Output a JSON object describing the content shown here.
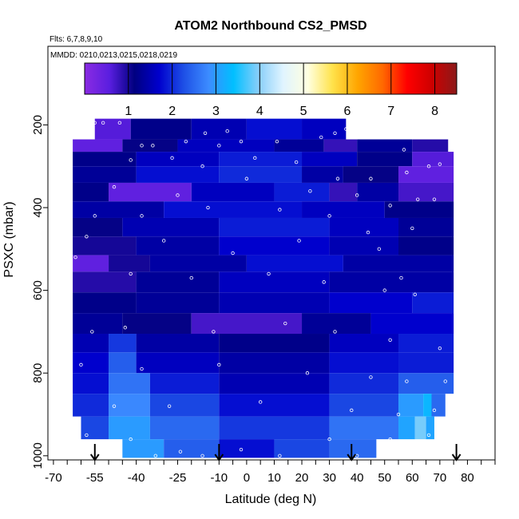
{
  "chart_data": {
    "type": "heatmap",
    "title": "ATOM2 Northbound CS2_PMSD",
    "subtitle_flights": "Flts: 6,7,8,9,10",
    "subtitle_dates": "MMDD: 0210,0213,0215,0218,0219",
    "xlabel": "Latitude (deg N)",
    "ylabel": "PSXC (mbar)",
    "xlim": [
      -72,
      90
    ],
    "ylim": [
      1010,
      10
    ],
    "x_ticks": [
      "-70",
      "-55",
      "-40",
      "-25",
      "-10",
      "0",
      "10",
      "20",
      "30",
      "40",
      "50",
      "60",
      "70",
      "80"
    ],
    "x_tick_values": [
      -70,
      -55,
      -40,
      -25,
      -10,
      0,
      10,
      20,
      30,
      40,
      50,
      60,
      70,
      80
    ],
    "y_ticks": [
      "200",
      "400",
      "600",
      "800",
      "1000"
    ],
    "y_tick_values": [
      200,
      400,
      600,
      800,
      1000
    ],
    "colorbar": {
      "range": [
        0,
        8.5
      ],
      "tick_labels": [
        "1",
        "2",
        "3",
        "4",
        "5",
        "6",
        "7",
        "8"
      ],
      "tick_values": [
        1,
        2,
        3,
        4,
        5,
        6,
        7,
        8
      ],
      "colors": [
        "#8a2be2",
        "#5a1ee0",
        "#000080",
        "#0000cd",
        "#1e50e6",
        "#3c8cff",
        "#00bfff",
        "#87cefa",
        "#e0f4ff",
        "#ffffe0",
        "#ffe24a",
        "#ffa500",
        "#ff6a00",
        "#ff0000",
        "#cd0000",
        "#8b1a1a"
      ]
    },
    "bands": [
      {
        "p_top": 185,
        "p_bot": 235,
        "segments": [
          {
            "lat": [
              -55,
              -42
            ],
            "v": 0.6
          },
          {
            "lat": [
              -42,
              -20
            ],
            "v": 1.2
          },
          {
            "lat": [
              -20,
              0
            ],
            "v": 1.5
          },
          {
            "lat": [
              0,
              20
            ],
            "v": 1.8
          },
          {
            "lat": [
              20,
              36
            ],
            "v": 1.6
          }
        ]
      },
      {
        "p_top": 235,
        "p_bot": 265,
        "segments": [
          {
            "lat": [
              -63,
              -45
            ],
            "v": 0.5
          },
          {
            "lat": [
              -45,
              -25
            ],
            "v": 1.1
          },
          {
            "lat": [
              -25,
              10
            ],
            "v": 1.6
          },
          {
            "lat": [
              10,
              28
            ],
            "v": 1.3
          },
          {
            "lat": [
              28,
              40
            ],
            "v": 0.8
          },
          {
            "lat": [
              40,
              60
            ],
            "v": 1.3
          },
          {
            "lat": [
              60,
              73
            ],
            "v": 0.9
          }
        ]
      },
      {
        "p_top": 265,
        "p_bot": 300,
        "segments": [
          {
            "lat": [
              -63,
              -40
            ],
            "v": 1.2
          },
          {
            "lat": [
              -40,
              -10
            ],
            "v": 1.6
          },
          {
            "lat": [
              -10,
              20
            ],
            "v": 1.9
          },
          {
            "lat": [
              20,
              40
            ],
            "v": 1.6
          },
          {
            "lat": [
              40,
              60
            ],
            "v": 1.2
          },
          {
            "lat": [
              60,
              75
            ],
            "v": 0.6
          }
        ]
      },
      {
        "p_top": 300,
        "p_bot": 340,
        "segments": [
          {
            "lat": [
              -63,
              -40
            ],
            "v": 1.3
          },
          {
            "lat": [
              -40,
              -10
            ],
            "v": 1.8
          },
          {
            "lat": [
              -10,
              20
            ],
            "v": 2.0
          },
          {
            "lat": [
              20,
              35
            ],
            "v": 1.4
          },
          {
            "lat": [
              35,
              55
            ],
            "v": 1.1
          },
          {
            "lat": [
              55,
              75
            ],
            "v": 0.5
          }
        ]
      },
      {
        "p_top": 340,
        "p_bot": 385,
        "segments": [
          {
            "lat": [
              -63,
              -50
            ],
            "v": 1.2
          },
          {
            "lat": [
              -50,
              -20
            ],
            "v": 0.5
          },
          {
            "lat": [
              -20,
              10
            ],
            "v": 1.6
          },
          {
            "lat": [
              10,
              30
            ],
            "v": 1.9
          },
          {
            "lat": [
              30,
              40
            ],
            "v": 0.8
          },
          {
            "lat": [
              40,
              55
            ],
            "v": 1.4
          },
          {
            "lat": [
              55,
              75
            ],
            "v": 0.7
          }
        ]
      },
      {
        "p_top": 385,
        "p_bot": 425,
        "segments": [
          {
            "lat": [
              -63,
              -30
            ],
            "v": 1.4
          },
          {
            "lat": [
              -30,
              20
            ],
            "v": 1.8
          },
          {
            "lat": [
              20,
              50
            ],
            "v": 1.6
          },
          {
            "lat": [
              50,
              75
            ],
            "v": 1.2
          }
        ]
      },
      {
        "p_top": 425,
        "p_bot": 470,
        "segments": [
          {
            "lat": [
              -63,
              -45
            ],
            "v": 1.1
          },
          {
            "lat": [
              -45,
              -10
            ],
            "v": 1.5
          },
          {
            "lat": [
              -10,
              30
            ],
            "v": 1.9
          },
          {
            "lat": [
              30,
              55
            ],
            "v": 1.6
          },
          {
            "lat": [
              55,
              75
            ],
            "v": 1.3
          }
        ]
      },
      {
        "p_top": 470,
        "p_bot": 515,
        "segments": [
          {
            "lat": [
              -63,
              -40
            ],
            "v": 1.0
          },
          {
            "lat": [
              -40,
              -10
            ],
            "v": 1.4
          },
          {
            "lat": [
              -10,
              30
            ],
            "v": 1.7
          },
          {
            "lat": [
              30,
              55
            ],
            "v": 1.5
          },
          {
            "lat": [
              55,
              75
            ],
            "v": 1.2
          }
        ]
      },
      {
        "p_top": 515,
        "p_bot": 555,
        "segments": [
          {
            "lat": [
              -63,
              -50
            ],
            "v": 0.5
          },
          {
            "lat": [
              -50,
              -35
            ],
            "v": 1.0
          },
          {
            "lat": [
              -35,
              0
            ],
            "v": 1.4
          },
          {
            "lat": [
              0,
              35
            ],
            "v": 1.8
          },
          {
            "lat": [
              35,
              75
            ],
            "v": 1.4
          }
        ]
      },
      {
        "p_top": 555,
        "p_bot": 605,
        "segments": [
          {
            "lat": [
              -63,
              -40
            ],
            "v": 0.9
          },
          {
            "lat": [
              -40,
              -10
            ],
            "v": 1.3
          },
          {
            "lat": [
              -10,
              30
            ],
            "v": 1.6
          },
          {
            "lat": [
              30,
              75
            ],
            "v": 1.4
          }
        ]
      },
      {
        "p_top": 605,
        "p_bot": 655,
        "segments": [
          {
            "lat": [
              -63,
              -40
            ],
            "v": 1.2
          },
          {
            "lat": [
              -40,
              -10
            ],
            "v": 1.3
          },
          {
            "lat": [
              -10,
              30
            ],
            "v": 1.5
          },
          {
            "lat": [
              30,
              60
            ],
            "v": 1.7
          },
          {
            "lat": [
              60,
              75
            ],
            "v": 1.9
          }
        ]
      },
      {
        "p_top": 655,
        "p_bot": 705,
        "segments": [
          {
            "lat": [
              -63,
              -45
            ],
            "v": 1.3
          },
          {
            "lat": [
              -45,
              -20
            ],
            "v": 1.1
          },
          {
            "lat": [
              -20,
              20
            ],
            "v": 0.7
          },
          {
            "lat": [
              20,
              45
            ],
            "v": 1.3
          },
          {
            "lat": [
              45,
              75
            ],
            "v": 1.7
          }
        ]
      },
      {
        "p_top": 705,
        "p_bot": 750,
        "segments": [
          {
            "lat": [
              -63,
              -50
            ],
            "v": 1.5
          },
          {
            "lat": [
              -50,
              -40
            ],
            "v": 2.1
          },
          {
            "lat": [
              -40,
              -10
            ],
            "v": 1.4
          },
          {
            "lat": [
              -10,
              30
            ],
            "v": 1.2
          },
          {
            "lat": [
              30,
              55
            ],
            "v": 1.6
          },
          {
            "lat": [
              55,
              75
            ],
            "v": 1.9
          }
        ]
      },
      {
        "p_top": 750,
        "p_bot": 800,
        "segments": [
          {
            "lat": [
              -63,
              -50
            ],
            "v": 1.7
          },
          {
            "lat": [
              -50,
              -40
            ],
            "v": 2.4
          },
          {
            "lat": [
              -40,
              -10
            ],
            "v": 1.6
          },
          {
            "lat": [
              -10,
              30
            ],
            "v": 1.4
          },
          {
            "lat": [
              30,
              55
            ],
            "v": 1.8
          },
          {
            "lat": [
              55,
              75
            ],
            "v": 1.9
          }
        ]
      },
      {
        "p_top": 800,
        "p_bot": 850,
        "segments": [
          {
            "lat": [
              -63,
              -50
            ],
            "v": 1.8
          },
          {
            "lat": [
              -50,
              -35
            ],
            "v": 2.6
          },
          {
            "lat": [
              -35,
              -10
            ],
            "v": 1.9
          },
          {
            "lat": [
              -10,
              30
            ],
            "v": 1.5
          },
          {
            "lat": [
              30,
              55
            ],
            "v": 2.0
          },
          {
            "lat": [
              55,
              75
            ],
            "v": 2.4
          }
        ]
      },
      {
        "p_top": 850,
        "p_bot": 905,
        "segments": [
          {
            "lat": [
              -63,
              -50
            ],
            "v": 2.0
          },
          {
            "lat": [
              -50,
              -35
            ],
            "v": 2.8
          },
          {
            "lat": [
              -35,
              -10
            ],
            "v": 2.2
          },
          {
            "lat": [
              -10,
              30
            ],
            "v": 1.8
          },
          {
            "lat": [
              30,
              55
            ],
            "v": 2.2
          },
          {
            "lat": [
              55,
              64
            ],
            "v": 3.0
          },
          {
            "lat": [
              64,
              67
            ],
            "v": 3.3
          },
          {
            "lat": [
              67,
              72
            ],
            "v": 2.5
          }
        ]
      },
      {
        "p_top": 905,
        "p_bot": 960,
        "segments": [
          {
            "lat": [
              -60,
              -50
            ],
            "v": 2.2
          },
          {
            "lat": [
              -50,
              -35
            ],
            "v": 3.0
          },
          {
            "lat": [
              -35,
              -10
            ],
            "v": 2.5
          },
          {
            "lat": [
              -10,
              30
            ],
            "v": 2.1
          },
          {
            "lat": [
              30,
              55
            ],
            "v": 2.6
          },
          {
            "lat": [
              55,
              61
            ],
            "v": 3.1
          },
          {
            "lat": [
              61,
              65
            ],
            "v": 3.9
          },
          {
            "lat": [
              65,
              68
            ],
            "v": 3.1
          }
        ]
      },
      {
        "p_top": 960,
        "p_bot": 1005,
        "segments": [
          {
            "lat": [
              -45,
              -30
            ],
            "v": 3.0
          },
          {
            "lat": [
              -30,
              -10
            ],
            "v": 2.4
          },
          {
            "lat": [
              -10,
              10
            ],
            "v": 1.8
          },
          {
            "lat": [
              10,
              30
            ],
            "v": 2.2
          },
          {
            "lat": [
              30,
              47
            ],
            "v": 2.5
          }
        ]
      }
    ],
    "sample_points": [
      [
        -55,
        195
      ],
      [
        -52,
        195
      ],
      [
        -46,
        195
      ],
      [
        -15,
        220
      ],
      [
        -7,
        215
      ],
      [
        32,
        220
      ],
      [
        36,
        210
      ],
      [
        -38,
        250
      ],
      [
        -34,
        250
      ],
      [
        -22,
        240
      ],
      [
        -10,
        250
      ],
      [
        -2,
        240
      ],
      [
        11,
        240
      ],
      [
        27,
        230
      ],
      [
        57,
        260
      ],
      [
        -42,
        285
      ],
      [
        -27,
        280
      ],
      [
        -16,
        300
      ],
      [
        3,
        280
      ],
      [
        18,
        290
      ],
      [
        33,
        330
      ],
      [
        45,
        330
      ],
      [
        58,
        315
      ],
      [
        66,
        300
      ],
      [
        70,
        295
      ],
      [
        -48,
        350
      ],
      [
        -25,
        370
      ],
      [
        0,
        330
      ],
      [
        23,
        360
      ],
      [
        40,
        370
      ],
      [
        52,
        395
      ],
      [
        62,
        380
      ],
      [
        68,
        380
      ],
      [
        -55,
        420
      ],
      [
        -38,
        420
      ],
      [
        -14,
        400
      ],
      [
        12,
        405
      ],
      [
        30,
        420
      ],
      [
        44,
        460
      ],
      [
        60,
        450
      ],
      [
        -58,
        470
      ],
      [
        -30,
        480
      ],
      [
        -5,
        510
      ],
      [
        19,
        480
      ],
      [
        48,
        500
      ],
      [
        56,
        570
      ],
      [
        -62,
        520
      ],
      [
        -42,
        560
      ],
      [
        -20,
        570
      ],
      [
        8,
        560
      ],
      [
        28,
        580
      ],
      [
        50,
        600
      ],
      [
        61,
        610
      ],
      [
        -56,
        700
      ],
      [
        -44,
        690
      ],
      [
        -12,
        700
      ],
      [
        14,
        680
      ],
      [
        32,
        700
      ],
      [
        52,
        720
      ],
      [
        70,
        740
      ],
      [
        -60,
        780
      ],
      [
        -38,
        790
      ],
      [
        -10,
        780
      ],
      [
        22,
        800
      ],
      [
        45,
        810
      ],
      [
        58,
        820
      ],
      [
        72,
        820
      ],
      [
        -64,
        860
      ],
      [
        -48,
        880
      ],
      [
        -28,
        880
      ],
      [
        5,
        870
      ],
      [
        38,
        890
      ],
      [
        55,
        900
      ],
      [
        68,
        890
      ],
      [
        -58,
        950
      ],
      [
        -42,
        960
      ],
      [
        -24,
        990
      ],
      [
        -2,
        985
      ],
      [
        30,
        960
      ],
      [
        52,
        960
      ],
      [
        66,
        950
      ],
      [
        -33,
        1000
      ],
      [
        -16,
        1000
      ],
      [
        12,
        1000
      ],
      [
        40,
        1000
      ]
    ],
    "flight_arrows": [
      -55,
      -10,
      38,
      76
    ]
  }
}
